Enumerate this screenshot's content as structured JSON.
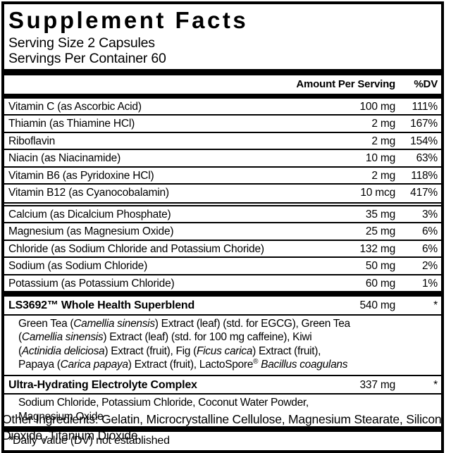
{
  "label": {
    "title": "Supplement Facts",
    "serving_size": "Serving Size 2 Capsules",
    "servings_per_container": "Servings Per Container 60",
    "columns": {
      "amount": "Amount Per Serving",
      "dv": "%DV"
    },
    "vitamins": [
      {
        "name": "Vitamin C (as Ascorbic Acid)",
        "amount": "100 mg",
        "dv": "111%"
      },
      {
        "name": "Thiamin (as Thiamine HCl)",
        "amount": "2 mg",
        "dv": "167%"
      },
      {
        "name": "Riboflavin",
        "amount": "2 mg",
        "dv": "154%"
      },
      {
        "name": "Niacin (as Niacinamide)",
        "amount": "10 mg",
        "dv": "63%"
      },
      {
        "name": "Vitamin B6 (as Pyridoxine HCl)",
        "amount": "2 mg",
        "dv": "118%"
      },
      {
        "name": "Vitamin B12 (as Cyanocobalamin)",
        "amount": "10 mcg",
        "dv": "417%"
      }
    ],
    "minerals": [
      {
        "name": "Calcium (as Dicalcium Phosphate)",
        "amount": "35 mg",
        "dv": "3%"
      },
      {
        "name": "Magnesium (as Magnesium Oxide)",
        "amount": "25 mg",
        "dv": "6%"
      },
      {
        "name": "Chloride (as Sodium Chloride and Potassium Choride)",
        "amount": "132 mg",
        "dv": "6%"
      },
      {
        "name": "Sodium (as Sodium Chloride)",
        "amount": "50 mg",
        "dv": "2%"
      },
      {
        "name": "Potassium (as Potassium Chloride)",
        "amount": "60 mg",
        "dv": "1%"
      }
    ],
    "blends": [
      {
        "name": "LS3692™ Whole Health Superblend",
        "amount": "540 mg",
        "dv": "*",
        "description_lines": [
          [
            {
              "t": "Green Tea ("
            },
            {
              "t": "Camellia sinensis",
              "i": 1
            },
            {
              "t": ") Extract (leaf) (std. for EGCG), Green Tea"
            }
          ],
          [
            {
              "t": "("
            },
            {
              "t": "Camellia sinensis",
              "i": 1
            },
            {
              "t": ") Extract (leaf) (std. for 100 mg caffeine), Kiwi"
            }
          ],
          [
            {
              "t": "("
            },
            {
              "t": "Actinidia deliciosa",
              "i": 1
            },
            {
              "t": ") Extract (fruit), Fig ("
            },
            {
              "t": "Ficus carica",
              "i": 1
            },
            {
              "t": ") Extract (fruit),"
            }
          ],
          [
            {
              "t": "Papaya ("
            },
            {
              "t": "Carica papaya",
              "i": 1
            },
            {
              "t": ") Extract (fruit), LactoSpore"
            },
            {
              "t": "®",
              "sup": 1
            },
            {
              "t": " "
            },
            {
              "t": "Bacillus coagulans",
              "i": 1
            }
          ]
        ]
      },
      {
        "name": "Ultra-Hydrating Electrolyte Complex",
        "amount": "337 mg",
        "dv": "*",
        "description_lines": [
          [
            {
              "t": "Sodium Chloride, Potassium Chloride, Coconut Water Powder,"
            }
          ],
          [
            {
              "t": "Magnesium Oxide"
            }
          ]
        ]
      }
    ],
    "footnote": "*Daily Value (DV) not established",
    "other_ingredients": "Other Ingredients: Gelatin, Microcrystalline Cellulose, Magnesium Stearate, Silicon Dioxide, Titanium Dioxide."
  }
}
